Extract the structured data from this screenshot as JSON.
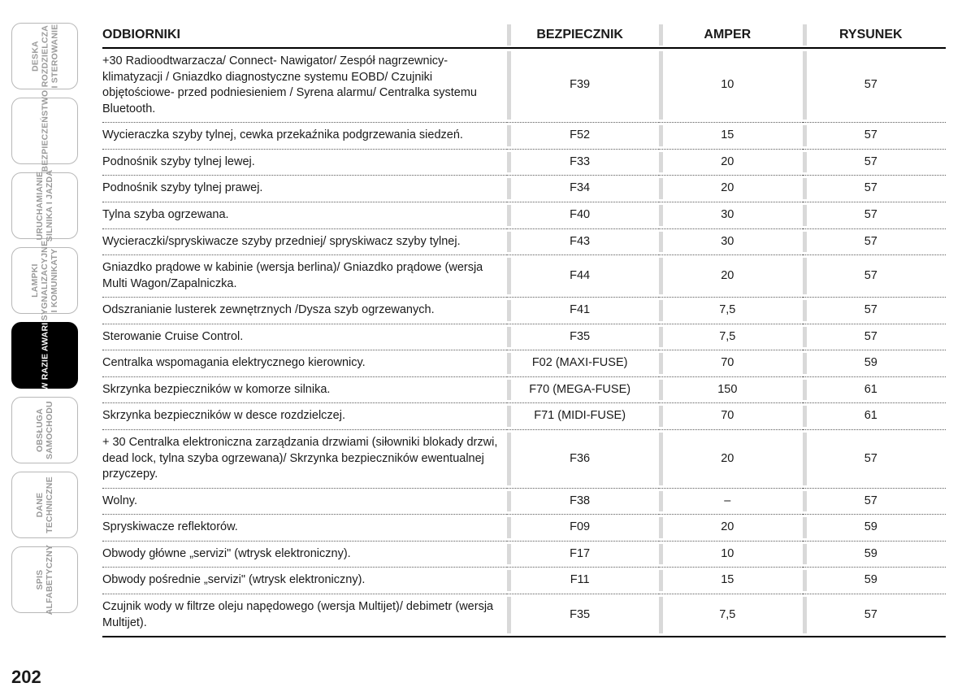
{
  "page_number": "202",
  "sidebar": {
    "tabs": [
      {
        "label": "DESKA\nROZDZIELCZA\nI STEROWANIE",
        "active": false
      },
      {
        "label": "BEZPIECZEŃSTWO",
        "active": false
      },
      {
        "label": "URUCHAMIANIE\nSILNIKA I JAZDA",
        "active": false
      },
      {
        "label": "LAMPKI\nSYGNALIZACYJNE\nI KOMUNIKATY",
        "active": false
      },
      {
        "label": "W RAZIE AWARII",
        "active": true
      },
      {
        "label": "OBSŁUGA\nSAMOCHODU",
        "active": false
      },
      {
        "label": "DANE\nTECHNICZNE",
        "active": false
      },
      {
        "label": "SPIS\nALFABETYCZNY",
        "active": false
      }
    ]
  },
  "table": {
    "columns": {
      "receivers": "ODBIORNIKI",
      "fuse": "BEZPIECZNIK",
      "amp": "AMPER",
      "fig": "RYSUNEK"
    },
    "col_widths": {
      "receivers": "48%",
      "fuse": "18%",
      "amp": "17%",
      "fig": "17%"
    },
    "rows": [
      {
        "receivers": "+30 Radioodtwarzacza/ Connect- Nawigator/ Zespół nagrzewnicy-klimatyzacji / Gniazdko diagnostyczne systemu EOBD/ Czujniki objętościowe- przed podniesieniem / Syrena alarmu/ Centralka systemu Bluetooth.",
        "fuse": "F39",
        "amp": "10",
        "fig": "57"
      },
      {
        "receivers": "Wycieraczka szyby tylnej, cewka przekaźnika podgrzewania siedzeń.",
        "fuse": "F52",
        "amp": "15",
        "fig": "57"
      },
      {
        "receivers": "Podnośnik szyby tylnej lewej.",
        "fuse": "F33",
        "amp": "20",
        "fig": "57"
      },
      {
        "receivers": "Podnośnik szyby tylnej prawej.",
        "fuse": "F34",
        "amp": "20",
        "fig": "57"
      },
      {
        "receivers": "Tylna szyba ogrzewana.",
        "fuse": "F40",
        "amp": "30",
        "fig": "57"
      },
      {
        "receivers": "Wycieraczki/spryskiwacze szyby przedniej/ spryskiwacz szyby tylnej.",
        "fuse": "F43",
        "amp": "30",
        "fig": "57"
      },
      {
        "receivers": "Gniazdko prądowe w kabinie (wersja berlina)/ Gniazdko prądowe (wersja Multi Wagon/Zapalniczka.",
        "fuse": "F44",
        "amp": "20",
        "fig": "57"
      },
      {
        "receivers": "Odszranianie lusterek zewnętrznych /Dysza szyb ogrzewanych.",
        "fuse": "F41",
        "amp": "7,5",
        "fig": "57"
      },
      {
        "receivers": "Sterowanie Cruise Control.",
        "fuse": "F35",
        "amp": "7,5",
        "fig": "57"
      },
      {
        "receivers": "Centralka wspomagania elektrycznego kierownicy.",
        "fuse": "F02 (MAXI-FUSE)",
        "amp": "70",
        "fig": "59"
      },
      {
        "receivers": "Skrzynka bezpieczników w komorze silnika.",
        "fuse": "F70 (MEGA-FUSE)",
        "amp": "150",
        "fig": "61"
      },
      {
        "receivers": "Skrzynka bezpieczników w desce rozdzielczej.",
        "fuse": "F71 (MIDI-FUSE)",
        "amp": "70",
        "fig": "61"
      },
      {
        "receivers": "+ 30 Centralka elektroniczna zarządzania drzwiami (siłowniki blokady drzwi, dead lock, tylna szyba ogrzewana)/ Skrzynka bezpieczników ewentualnej przyczepy.",
        "fuse": "F36",
        "amp": "20",
        "fig": "57"
      },
      {
        "receivers": "Wolny.",
        "fuse": "F38",
        "amp": "–",
        "fig": "57"
      },
      {
        "receivers": "Spryskiwacze reflektorów.",
        "fuse": "F09",
        "amp": "20",
        "fig": "59"
      },
      {
        "receivers": "Obwody główne „servizi\" (wtrysk elektroniczny).",
        "fuse": "F17",
        "amp": "10",
        "fig": "59"
      },
      {
        "receivers": "Obwody pośrednie „servizi\" (wtrysk elektroniczny).",
        "fuse": "F11",
        "amp": "15",
        "fig": "59"
      },
      {
        "receivers": "Czujnik wody w filtrze oleju napędowego (wersja Multijet)/ debimetr (wersja Multijet).",
        "fuse": "F35",
        "amp": "7,5",
        "fig": "57"
      }
    ]
  }
}
